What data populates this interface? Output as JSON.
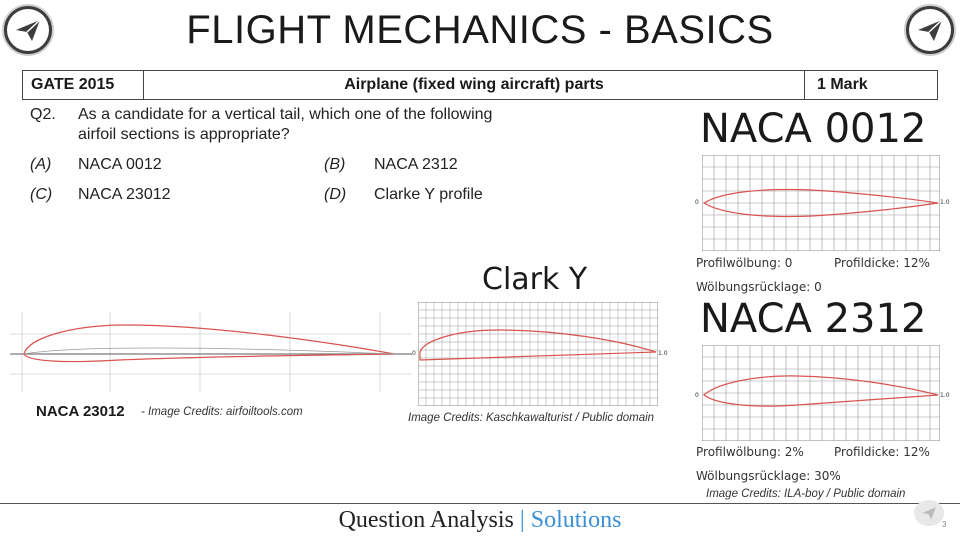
{
  "header": {
    "title": "FLIGHT MECHANICS - BASICS",
    "logo_icon": "paper-plane-icon"
  },
  "question_header": {
    "exam": "GATE 2015",
    "topic": "Airplane (fixed wing aircraft) parts",
    "marks": "1 Mark"
  },
  "question": {
    "number": "Q2.",
    "text_line1": "As a candidate for a vertical tail, which one of the following",
    "text_line2": "airfoil sections is appropriate?",
    "options": [
      {
        "letter": "(A)",
        "text": "NACA 0012"
      },
      {
        "letter": "(B)",
        "text": "NACA 2312"
      },
      {
        "letter": "(C)",
        "text": "NACA 23012"
      },
      {
        "letter": "(D)",
        "text": "Clarke Y profile"
      }
    ]
  },
  "naca0012": {
    "title": "NACA 0012",
    "caption_line1_a": "Profilwölbung: 0",
    "caption_line1_b": "Profildicke: 12%",
    "caption_line2": "Wölbungsrücklage: 0",
    "axis_start": "0",
    "axis_end": "1.0"
  },
  "naca2312": {
    "title": "NACA 2312",
    "caption_line1_a": "Profilwölbung: 2%",
    "caption_line1_b": "Profildicke: 12%",
    "caption_line2": "Wölbungsrücklage: 30%",
    "credit": "Image Credits: ILA-boy / Public domain",
    "axis_start": "0",
    "axis_end": "1.0"
  },
  "clarky": {
    "title": "Clark Y",
    "credit": "Image Credits: Kaschkawalturist / Public domain",
    "axis_start": "0",
    "axis_end": "1.0"
  },
  "naca23012": {
    "label": "NACA 23012",
    "credit": "- Image Credits: airfoiltools.com"
  },
  "footer": {
    "part1": "Question Analysis ",
    "separator": "|",
    "part2": " Solutions",
    "page_number": "3"
  },
  "colors": {
    "airfoil": "#d9534f",
    "accent": "#3a8fd6",
    "grid": "#9a9a9a"
  }
}
